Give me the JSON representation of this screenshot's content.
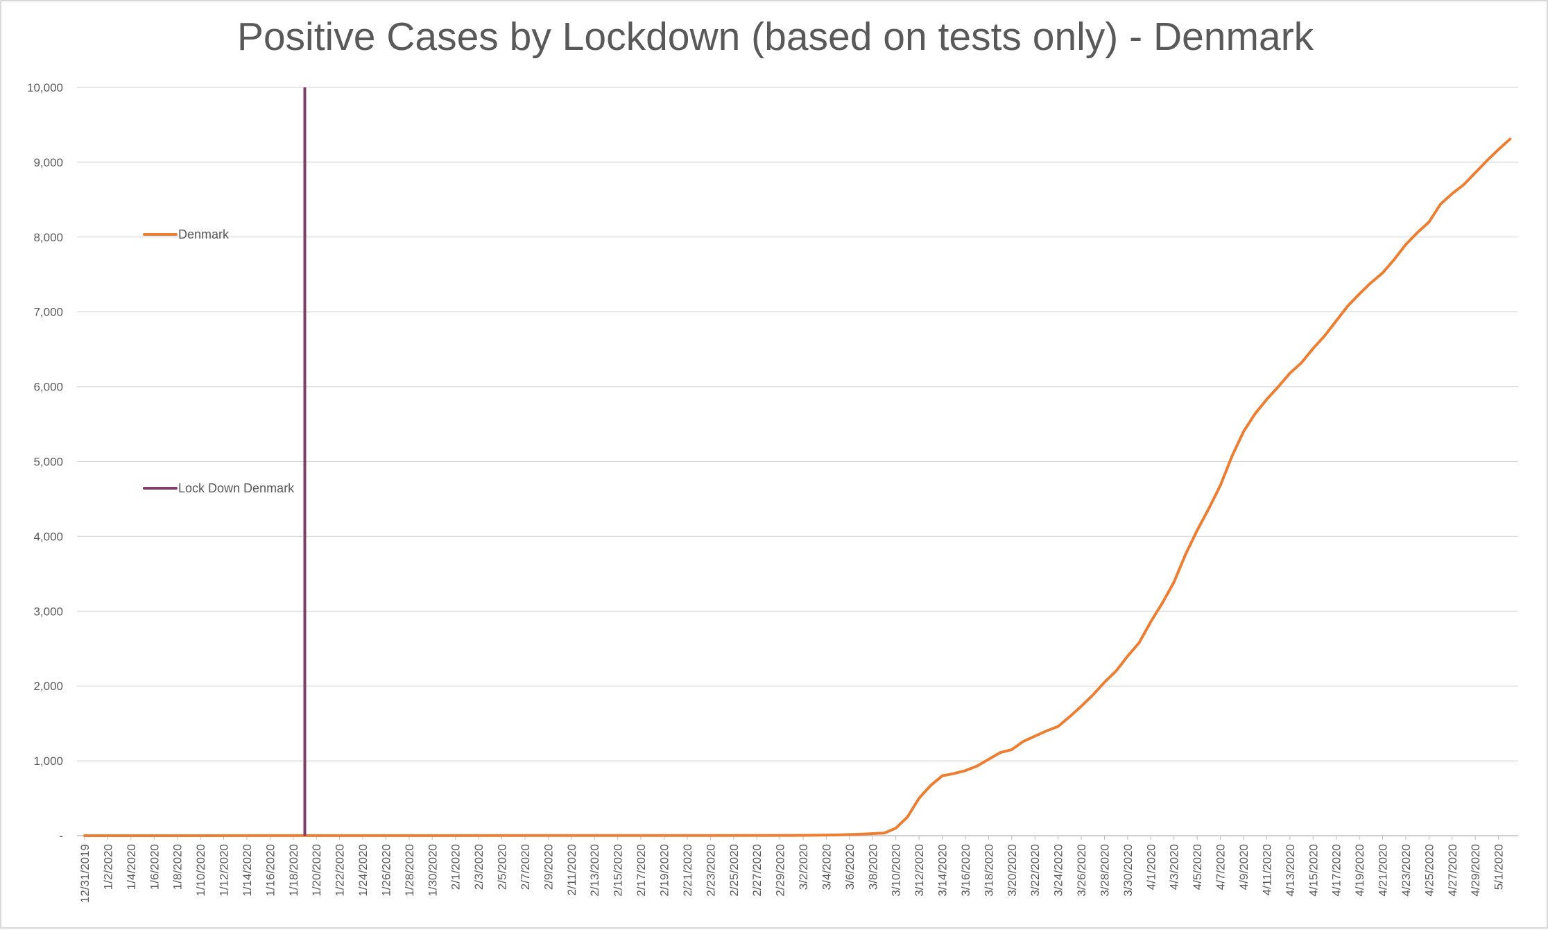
{
  "chart_data": {
    "type": "line",
    "title": "Positive Cases by Lockdown (based on tests only) - Denmark",
    "xlabel": "",
    "ylabel": "",
    "ylim": [
      0,
      10000
    ],
    "y_ticks": [
      0,
      1000,
      2000,
      3000,
      4000,
      5000,
      6000,
      7000,
      8000,
      9000,
      10000
    ],
    "y_tick_labels": [
      "-",
      "1,000",
      "2,000",
      "3,000",
      "4,000",
      "5,000",
      "6,000",
      "7,000",
      "8,000",
      "9,000",
      "10,000"
    ],
    "x_start_date": "12/31/2019",
    "x_tick_labels": [
      "12/31/2019",
      "1/2/2020",
      "1/4/2020",
      "1/6/2020",
      "1/8/2020",
      "1/10/2020",
      "1/12/2020",
      "1/14/2020",
      "1/16/2020",
      "1/18/2020",
      "1/20/2020",
      "1/22/2020",
      "1/24/2020",
      "1/26/2020",
      "1/28/2020",
      "1/30/2020",
      "2/1/2020",
      "2/3/2020",
      "2/5/2020",
      "2/7/2020",
      "2/9/2020",
      "2/11/2020",
      "2/13/2020",
      "2/15/2020",
      "2/17/2020",
      "2/19/2020",
      "2/21/2020",
      "2/23/2020",
      "2/25/2020",
      "2/27/2020",
      "2/29/2020",
      "3/2/2020",
      "3/4/2020",
      "3/6/2020",
      "3/8/2020",
      "3/10/2020",
      "3/12/2020",
      "3/14/2020",
      "3/16/2020",
      "3/18/2020",
      "3/20/2020",
      "3/22/2020",
      "3/24/2020",
      "3/26/2020",
      "3/28/2020",
      "3/30/2020",
      "4/1/2020",
      "4/3/2020",
      "4/5/2020",
      "4/7/2020",
      "4/9/2020",
      "4/11/2020",
      "4/13/2020",
      "4/15/2020",
      "4/17/2020",
      "4/19/2020",
      "4/21/2020",
      "4/23/2020",
      "4/25/2020",
      "4/27/2020",
      "4/29/2020",
      "5/1/2020"
    ],
    "grid": true,
    "legend_placement": "left",
    "series": [
      {
        "name": "Denmark",
        "color": "#ED7D31",
        "points": [
          [
            "12/31/2019",
            0
          ],
          [
            "3/1/2020",
            3
          ],
          [
            "3/3/2020",
            6
          ],
          [
            "3/5/2020",
            10
          ],
          [
            "3/7/2020",
            20
          ],
          [
            "3/9/2020",
            35
          ],
          [
            "3/10/2020",
            100
          ],
          [
            "3/11/2020",
            250
          ],
          [
            "3/12/2020",
            500
          ],
          [
            "3/13/2020",
            670
          ],
          [
            "3/14/2020",
            800
          ],
          [
            "3/15/2020",
            830
          ],
          [
            "3/16/2020",
            870
          ],
          [
            "3/17/2020",
            930
          ],
          [
            "3/18/2020",
            1020
          ],
          [
            "3/19/2020",
            1110
          ],
          [
            "3/20/2020",
            1150
          ],
          [
            "3/21/2020",
            1260
          ],
          [
            "3/22/2020",
            1330
          ],
          [
            "3/23/2020",
            1400
          ],
          [
            "3/24/2020",
            1460
          ],
          [
            "3/25/2020",
            1590
          ],
          [
            "3/26/2020",
            1730
          ],
          [
            "3/27/2020",
            1880
          ],
          [
            "3/28/2020",
            2050
          ],
          [
            "3/29/2020",
            2200
          ],
          [
            "3/30/2020",
            2400
          ],
          [
            "3/31/2020",
            2580
          ],
          [
            "4/1/2020",
            2860
          ],
          [
            "4/2/2020",
            3110
          ],
          [
            "4/3/2020",
            3390
          ],
          [
            "4/4/2020",
            3760
          ],
          [
            "4/5/2020",
            4080
          ],
          [
            "4/6/2020",
            4370
          ],
          [
            "4/7/2020",
            4680
          ],
          [
            "4/8/2020",
            5070
          ],
          [
            "4/9/2020",
            5400
          ],
          [
            "4/10/2020",
            5640
          ],
          [
            "4/11/2020",
            5830
          ],
          [
            "4/12/2020",
            6000
          ],
          [
            "4/13/2020",
            6180
          ],
          [
            "4/14/2020",
            6320
          ],
          [
            "4/15/2020",
            6510
          ],
          [
            "4/16/2020",
            6680
          ],
          [
            "4/17/2020",
            6880
          ],
          [
            "4/18/2020",
            7080
          ],
          [
            "4/19/2020",
            7240
          ],
          [
            "4/20/2020",
            7390
          ],
          [
            "4/21/2020",
            7520
          ],
          [
            "4/22/2020",
            7700
          ],
          [
            "4/23/2020",
            7900
          ],
          [
            "4/24/2020",
            8060
          ],
          [
            "4/25/2020",
            8200
          ],
          [
            "4/26/2020",
            8440
          ],
          [
            "4/27/2020",
            8580
          ],
          [
            "4/28/2020",
            8700
          ],
          [
            "4/29/2020",
            8860
          ],
          [
            "4/30/2020",
            9020
          ],
          [
            "5/1/2020",
            9170
          ],
          [
            "5/2/2020",
            9310
          ]
        ]
      },
      {
        "name": "Lock Down Denmark",
        "color": "#7E3F6B",
        "type": "vertical-line",
        "x": "1/19/2020",
        "y_range": [
          0,
          10000
        ]
      }
    ]
  },
  "colors": {
    "gridline": "#d9d9d9",
    "axis_line": "#bfbfbf",
    "text": "#595959",
    "border": "#d9d9d9"
  }
}
